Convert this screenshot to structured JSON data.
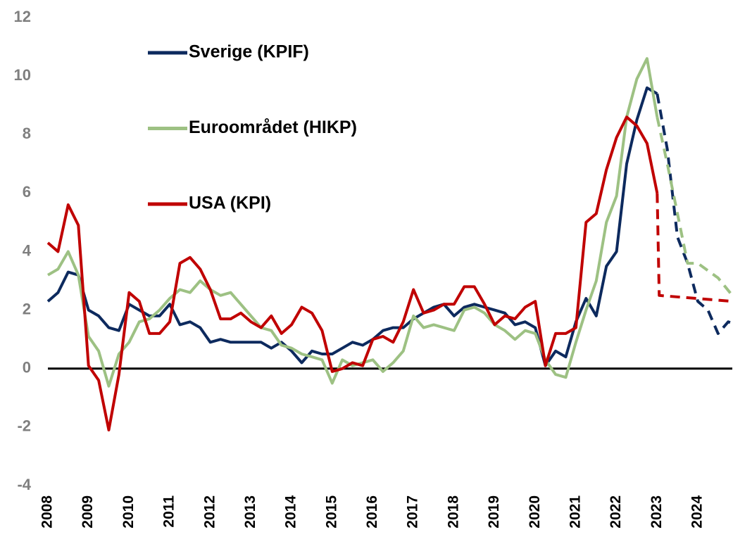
{
  "chart_data": {
    "type": "line",
    "x": [
      2008,
      2008.25,
      2008.5,
      2008.75,
      2009,
      2009.25,
      2009.5,
      2009.75,
      2010,
      2010.25,
      2010.5,
      2010.75,
      2011,
      2011.25,
      2011.5,
      2011.75,
      2012,
      2012.25,
      2012.5,
      2012.75,
      2013,
      2013.25,
      2013.5,
      2013.75,
      2014,
      2014.25,
      2014.5,
      2014.75,
      2015,
      2015.25,
      2015.5,
      2015.75,
      2016,
      2016.25,
      2016.5,
      2016.75,
      2017,
      2017.25,
      2017.5,
      2017.75,
      2018,
      2018.25,
      2018.5,
      2018.75,
      2019,
      2019.25,
      2019.5,
      2019.75,
      2020,
      2020.25,
      2020.5,
      2020.75,
      2021,
      2021.25,
      2021.5,
      2021.75,
      2022,
      2022.25,
      2022.5,
      2022.75,
      2023
    ],
    "series": [
      {
        "name": "Sverige (KPIF)",
        "color": "#0d2a5e",
        "values": [
          2.3,
          2.6,
          3.3,
          3.2,
          2.0,
          1.8,
          1.4,
          1.3,
          2.2,
          2.0,
          1.8,
          1.8,
          2.2,
          1.5,
          1.6,
          1.4,
          0.9,
          1.0,
          0.9,
          0.9,
          0.9,
          0.9,
          0.7,
          0.9,
          0.6,
          0.2,
          0.6,
          0.5,
          0.5,
          0.7,
          0.9,
          0.8,
          1.0,
          1.3,
          1.4,
          1.4,
          1.7,
          1.9,
          2.1,
          2.2,
          1.8,
          2.1,
          2.2,
          2.1,
          2.0,
          1.9,
          1.5,
          1.6,
          1.4,
          0.1,
          0.6,
          0.4,
          1.6,
          2.4,
          1.8,
          3.5,
          4.0,
          7.0,
          8.5,
          9.6,
          9.4
        ],
        "forecast": {
          "x": [
            2023,
            2023.25,
            2023.5,
            2023.75,
            2024,
            2024.25,
            2024.5,
            2024.75,
            2024.85
          ],
          "values": [
            9.4,
            7.5,
            4.5,
            3.6,
            2.3,
            2.0,
            1.2,
            1.6,
            1.55
          ]
        }
      },
      {
        "name": "Euroområdet (HIKP)",
        "color": "#9dc183",
        "values": [
          3.2,
          3.4,
          4.0,
          3.2,
          1.1,
          0.6,
          -0.6,
          0.5,
          0.9,
          1.6,
          1.7,
          2.0,
          2.4,
          2.7,
          2.6,
          3.0,
          2.7,
          2.5,
          2.6,
          2.2,
          1.8,
          1.4,
          1.3,
          0.8,
          0.7,
          0.5,
          0.4,
          0.3,
          -0.5,
          0.3,
          0.1,
          0.2,
          0.3,
          -0.1,
          0.2,
          0.6,
          1.8,
          1.4,
          1.5,
          1.4,
          1.3,
          2.0,
          2.1,
          1.9,
          1.5,
          1.3,
          1.0,
          1.3,
          1.2,
          0.3,
          -0.2,
          -0.3,
          0.9,
          2.0,
          3.0,
          5.0,
          5.9,
          8.6,
          9.9,
          10.6,
          8.6
        ],
        "forecast": {
          "x": [
            2023,
            2023.25,
            2023.5,
            2023.75,
            2024,
            2024.5,
            2024.85
          ],
          "values": [
            8.6,
            7.0,
            5.3,
            3.6,
            3.6,
            3.1,
            2.5
          ]
        }
      },
      {
        "name": "USA (KPI)",
        "color": "#c00000",
        "values": [
          4.3,
          4.0,
          5.6,
          4.9,
          0.1,
          -0.4,
          -2.1,
          -0.2,
          2.6,
          2.3,
          1.2,
          1.2,
          1.6,
          3.6,
          3.8,
          3.4,
          2.7,
          1.7,
          1.7,
          1.9,
          1.6,
          1.4,
          1.8,
          1.2,
          1.5,
          2.1,
          1.9,
          1.3,
          -0.1,
          0.0,
          0.2,
          0.1,
          1.0,
          1.1,
          0.9,
          1.6,
          2.7,
          1.9,
          2.0,
          2.2,
          2.2,
          2.8,
          2.8,
          2.2,
          1.5,
          1.8,
          1.7,
          2.1,
          2.3,
          0.1,
          1.2,
          1.2,
          1.4,
          5.0,
          5.3,
          6.8,
          7.9,
          8.6,
          8.3,
          7.7,
          6.0
        ],
        "forecast": {
          "x": [
            2023,
            2023.05,
            2024.85
          ],
          "values": [
            6.0,
            2.5,
            2.3
          ]
        }
      }
    ],
    "xlim": [
      2008,
      2024.85
    ],
    "xticks": [
      2008,
      2009,
      2010,
      2011,
      2012,
      2013,
      2014,
      2015,
      2016,
      2017,
      2018,
      2019,
      2020,
      2021,
      2022,
      2023,
      2024
    ],
    "ylim": [
      -4,
      12
    ],
    "yticks": [
      -4,
      -2,
      0,
      2,
      4,
      6,
      8,
      10,
      12
    ],
    "grid": false,
    "legend": "upper left"
  }
}
